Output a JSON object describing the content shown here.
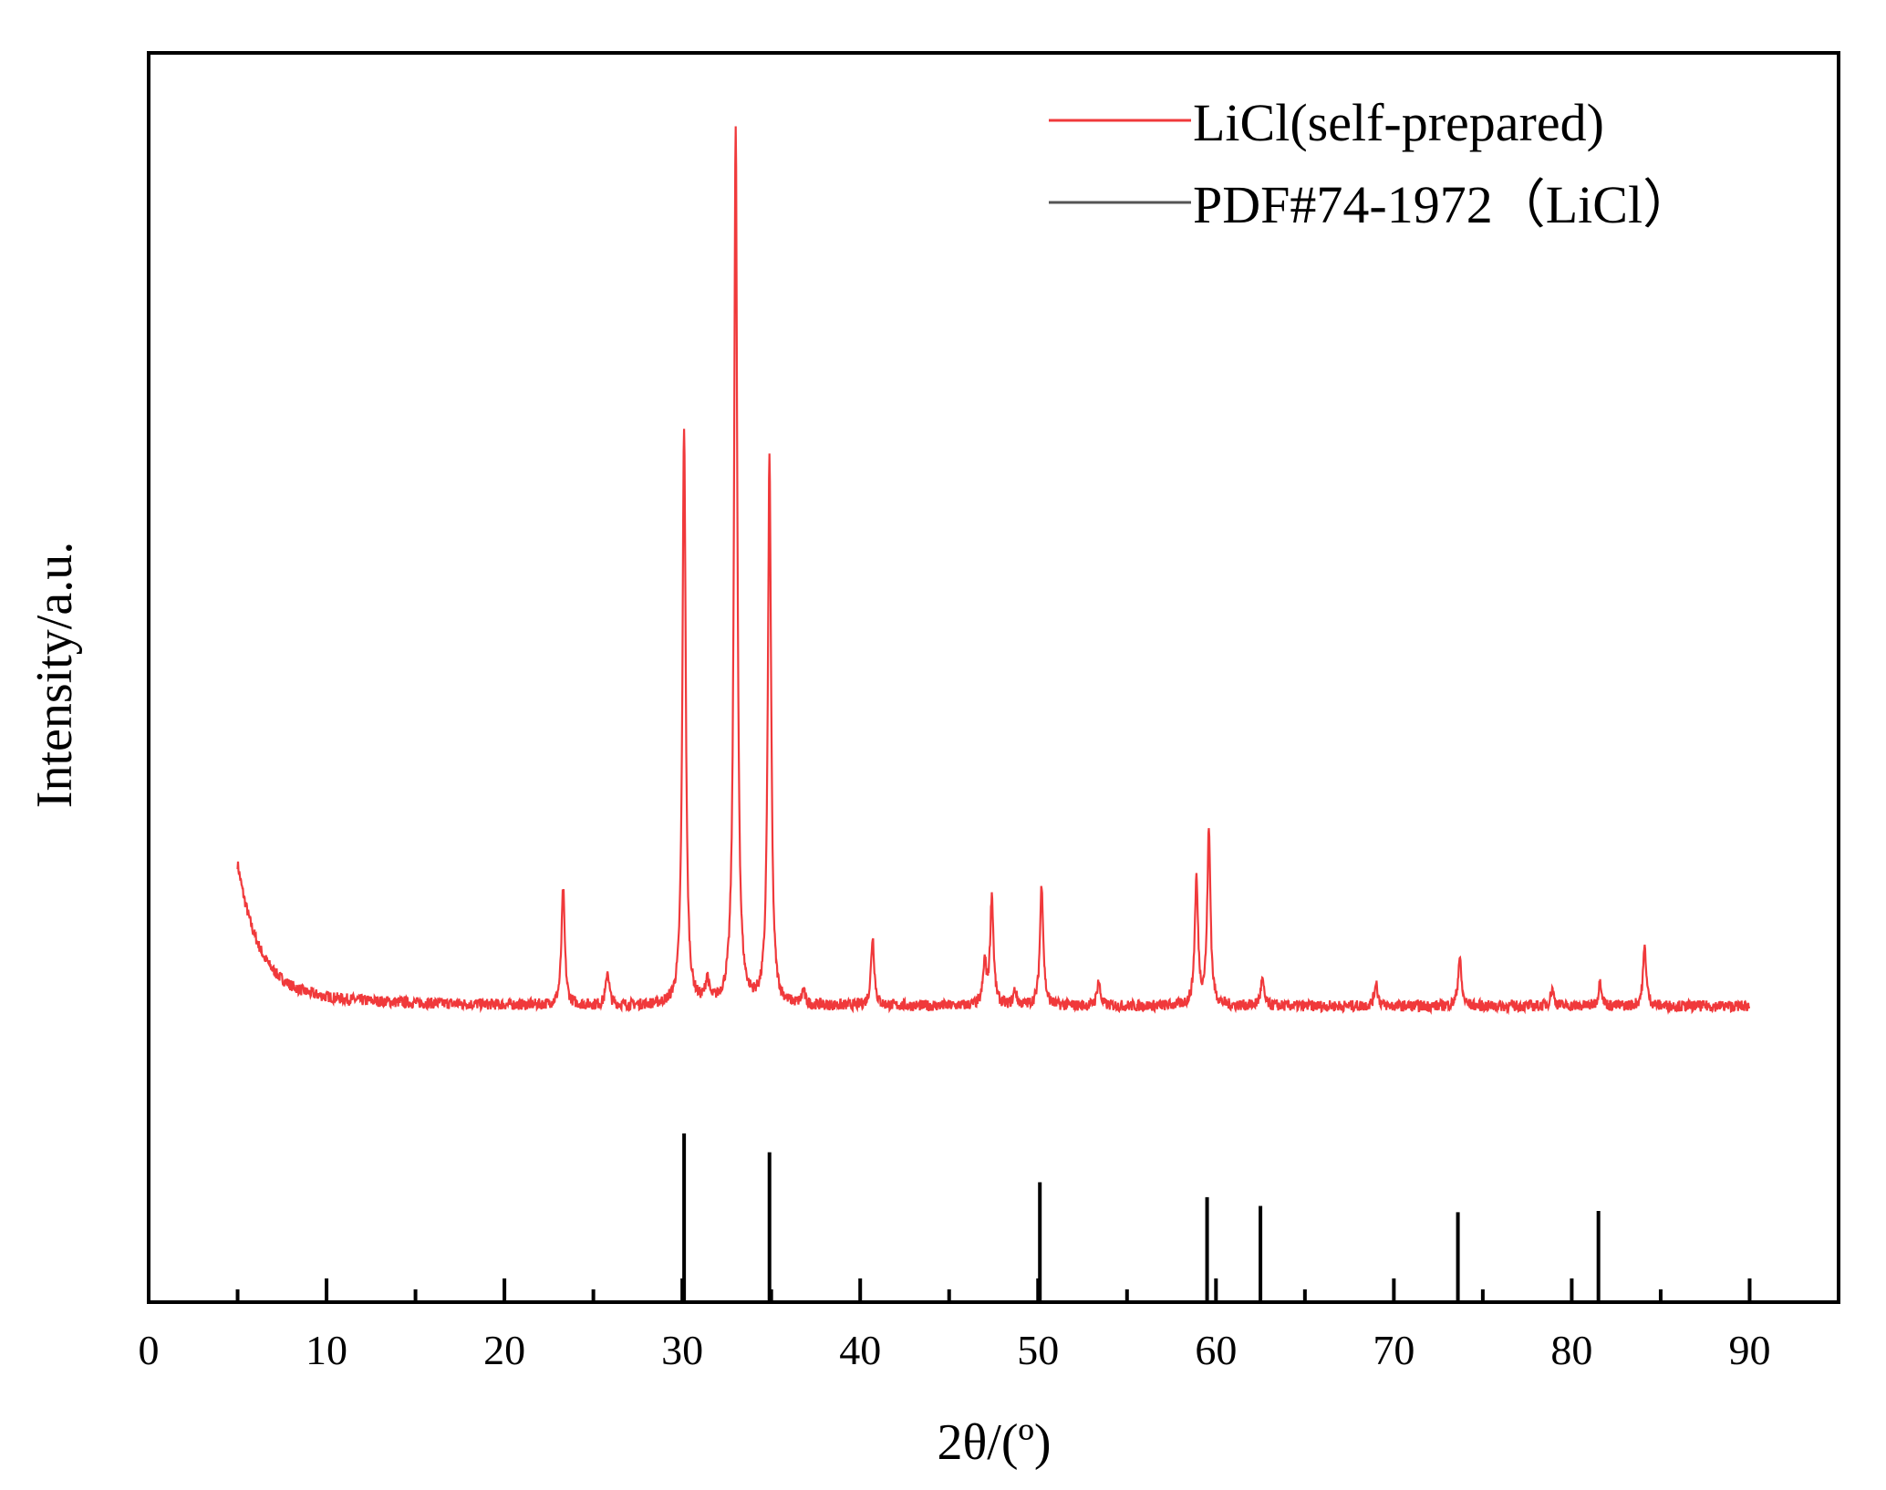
{
  "chart_data": {
    "type": "line",
    "xlabel": "2θ/(º)",
    "ylabel": "Intensity/a.u.",
    "xlim": [
      0,
      95
    ],
    "ylim": [
      0,
      100
    ],
    "y_ticks_shown": false,
    "x_major_ticks": [
      0,
      10,
      20,
      30,
      40,
      50,
      60,
      70,
      80,
      90
    ],
    "x_minor_ticks": [
      5,
      15,
      25,
      35,
      45,
      55,
      65,
      75,
      85
    ],
    "x_tick_labels": [
      "0",
      "10",
      "20",
      "30",
      "40",
      "50",
      "60",
      "70",
      "80",
      "90"
    ],
    "legend_position": "top-right",
    "series": [
      {
        "name": "LiCl(self-prepared)",
        "color": "#f0393b",
        "kind": "line",
        "x_range": [
          5,
          90
        ],
        "baseline": 23.7,
        "background_decay": {
          "start": 5,
          "amplitude": 10.0,
          "tau": 1.2
        },
        "peaks": [
          {
            "x": 23.3,
            "y": 33.0
          },
          {
            "x": 25.8,
            "y": 26.4
          },
          {
            "x": 30.1,
            "y": 70.0
          },
          {
            "x": 31.4,
            "y": 25.6
          },
          {
            "x": 33.0,
            "y": 94.0
          },
          {
            "x": 34.9,
            "y": 67.5
          },
          {
            "x": 36.8,
            "y": 24.8
          },
          {
            "x": 40.7,
            "y": 29.2
          },
          {
            "x": 47.0,
            "y": 27.0
          },
          {
            "x": 47.4,
            "y": 32.5
          },
          {
            "x": 48.7,
            "y": 24.9
          },
          {
            "x": 50.2,
            "y": 33.5
          },
          {
            "x": 53.4,
            "y": 25.7
          },
          {
            "x": 58.9,
            "y": 33.8
          },
          {
            "x": 59.6,
            "y": 37.6
          },
          {
            "x": 62.6,
            "y": 25.8
          },
          {
            "x": 69.0,
            "y": 25.6
          },
          {
            "x": 73.7,
            "y": 27.6
          },
          {
            "x": 78.9,
            "y": 25.1
          },
          {
            "x": 81.6,
            "y": 25.7
          },
          {
            "x": 84.1,
            "y": 28.4
          }
        ]
      },
      {
        "name": "PDF#74-1972（LiCl）",
        "color": "#000000",
        "kind": "sticks",
        "sticks": [
          {
            "x": 30.1,
            "y": 13.5
          },
          {
            "x": 34.9,
            "y": 12.0
          },
          {
            "x": 50.1,
            "y": 9.6
          },
          {
            "x": 59.5,
            "y": 8.4
          },
          {
            "x": 62.5,
            "y": 7.7
          },
          {
            "x": 73.6,
            "y": 7.2
          },
          {
            "x": 81.5,
            "y": 7.3
          }
        ]
      }
    ]
  }
}
